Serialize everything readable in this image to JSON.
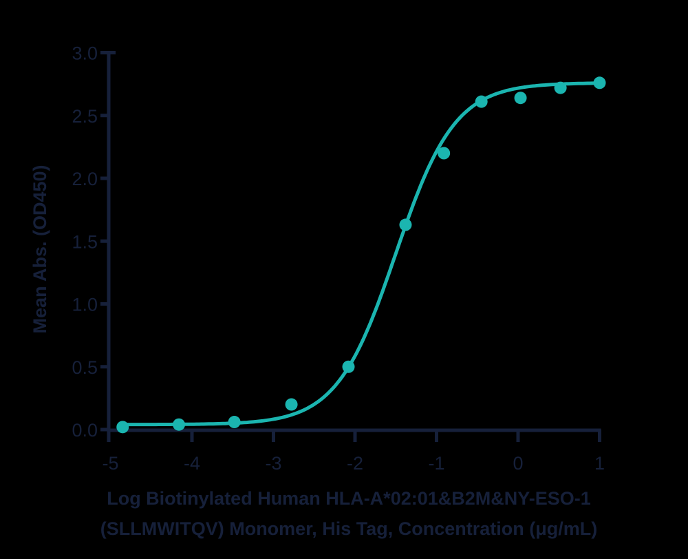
{
  "chart_data": {
    "type": "scatter",
    "title": "",
    "xlabel_lines": [
      "Log Biotinylated Human HLA-A*02:01&B2M&NY-ESO-1",
      "(SLLMWITQV) Monomer, His Tag, Concentration (μg/mL)"
    ],
    "xlabel": "Log Biotinylated Human HLA-A*02:01&B2M&NY-ESO-1 (SLLMWITQV) Monomer, His Tag, Concentration (μg/mL)",
    "ylabel": "Mean Abs. (OD450)",
    "xlim": [
      -5,
      1
    ],
    "ylim": [
      0,
      3.0
    ],
    "xticks": [
      -5,
      -4,
      -3,
      -2,
      -1,
      0,
      1
    ],
    "xtick_labels": [
      "-5",
      "-4",
      "-3",
      "-2",
      "-1",
      "0",
      "1"
    ],
    "yticks": [
      0,
      0.5,
      1.0,
      1.5,
      2.0,
      2.5,
      3.0
    ],
    "ytick_labels": [
      "0.0",
      "0.5",
      "1.0",
      "1.5",
      "2.0",
      "2.5",
      "3.0"
    ],
    "grid": false,
    "legend": null,
    "series": [
      {
        "name": "Mean Abs.",
        "color": "#1bb5b0",
        "x": [
          -4.85,
          -4.16,
          -3.48,
          -2.78,
          -2.08,
          -1.38,
          -0.91,
          -0.45,
          0.03,
          0.52,
          1.0
        ],
        "y": [
          0.02,
          0.04,
          0.06,
          0.2,
          0.5,
          1.63,
          2.2,
          2.61,
          2.64,
          2.72,
          2.76
        ]
      }
    ],
    "fit": {
      "model": "4PL",
      "bottom": 0.04,
      "top": 2.76,
      "log_ec50": -1.5,
      "hill": 1.2,
      "x_range": [
        -4.85,
        1.0
      ]
    }
  },
  "colors": {
    "axis": "#16203a",
    "series": "#1bb5b0",
    "background": "#000000"
  }
}
